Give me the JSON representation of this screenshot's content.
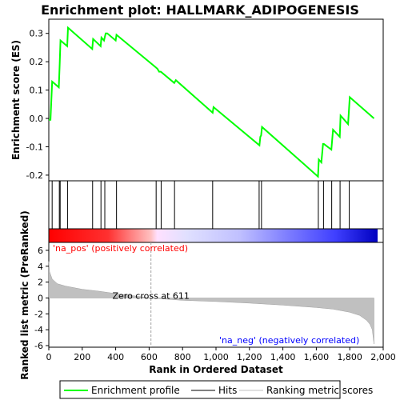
{
  "chart_data": {
    "type": "line",
    "title": "Enrichment plot: HALLMARK_ADIPOGENESIS",
    "top_panel": {
      "ylabel": "Enrichment score (ES)",
      "ylim": [
        -0.22,
        0.35
      ],
      "yticks": [
        -0.2,
        -0.1,
        0.0,
        0.1,
        0.2,
        0.3
      ],
      "ytick_labels": [
        "-0.2",
        "-0.1",
        "0.0",
        "0.1",
        "0.2",
        "0.3"
      ],
      "series": {
        "name": "Enrichment profile",
        "color": "#00ff00",
        "x": [
          0,
          10,
          20,
          60,
          65,
          70,
          110,
          115,
          260,
          265,
          310,
          315,
          330,
          340,
          350,
          400,
          405,
          640,
          650,
          660,
          670,
          750,
          760,
          980,
          985,
          1260,
          1265,
          1270,
          1275,
          1610,
          1615,
          1630,
          1640,
          1645,
          1690,
          1700,
          1740,
          1745,
          1790,
          1800,
          1945
        ],
        "y": [
          -0.005,
          -0.005,
          0.13,
          0.11,
          0.19,
          0.275,
          0.255,
          0.32,
          0.245,
          0.28,
          0.255,
          0.285,
          0.275,
          0.3,
          0.3,
          0.275,
          0.295,
          0.18,
          0.175,
          0.165,
          0.165,
          0.125,
          0.135,
          0.02,
          0.04,
          -0.095,
          -0.065,
          -0.06,
          -0.03,
          -0.205,
          -0.145,
          -0.155,
          -0.09,
          -0.09,
          -0.11,
          -0.04,
          -0.065,
          0.01,
          -0.02,
          0.075,
          0.0
        ]
      },
      "grid": false
    },
    "hits": {
      "name": "Hits",
      "positions": [
        20,
        63,
        68,
        112,
        262,
        312,
        335,
        405,
        642,
        672,
        752,
        980,
        1258,
        1272,
        1612,
        1643,
        1692,
        1742,
        1797
      ]
    },
    "rank_bar": {
      "pos_label": "'na_pos' (positively correlated)",
      "neg_label": "'na_neg' (negatively correlated)",
      "pos_color": "#ff0000",
      "neg_color": "#0000ff"
    },
    "bottom_panel": {
      "ylabel": "Ranked list metric (PreRanked)",
      "xlabel": "Rank in Ordered Dataset",
      "ylim": [
        -6.2,
        7
      ],
      "yticks": [
        -6,
        -4,
        -2,
        0,
        2,
        4,
        6
      ],
      "ytick_labels": [
        "-6",
        "-4",
        "-2",
        "0",
        "2",
        "4",
        "6"
      ],
      "xlim": [
        0,
        2000
      ],
      "xticks": [
        0,
        200,
        400,
        600,
        800,
        1000,
        1200,
        1400,
        1600,
        1800,
        2000
      ],
      "xtick_labels": [
        "0",
        "200",
        "400",
        "600",
        "800",
        "1,000",
        "1,200",
        "1,400",
        "1,600",
        "1,800",
        "2,000"
      ],
      "zero_cross_label": "Zero cross at 611",
      "zero_cross": 611,
      "n_genes": 1945,
      "metric_profile": {
        "rank": [
          0,
          5,
          20,
          50,
          100,
          200,
          300,
          400,
          500,
          611,
          800,
          1000,
          1200,
          1400,
          1600,
          1700,
          1800,
          1860,
          1900,
          1920,
          1935,
          1940,
          1945
        ],
        "value": [
          4.6,
          3.3,
          2.4,
          1.8,
          1.5,
          1.1,
          0.85,
          0.55,
          0.3,
          0.0,
          -0.3,
          -0.45,
          -0.65,
          -0.9,
          -1.2,
          -1.4,
          -1.8,
          -2.2,
          -2.8,
          -3.3,
          -4.0,
          -5.0,
          -5.8
        ]
      },
      "fill_color": "#c0c0c0"
    },
    "legend": {
      "items": [
        {
          "label": "Enrichment profile",
          "color": "#00ff00"
        },
        {
          "label": "Hits",
          "color": "#000000"
        },
        {
          "label": "Ranking metric scores",
          "color": "#c0c0c0"
        }
      ],
      "placement": "bottom"
    }
  }
}
